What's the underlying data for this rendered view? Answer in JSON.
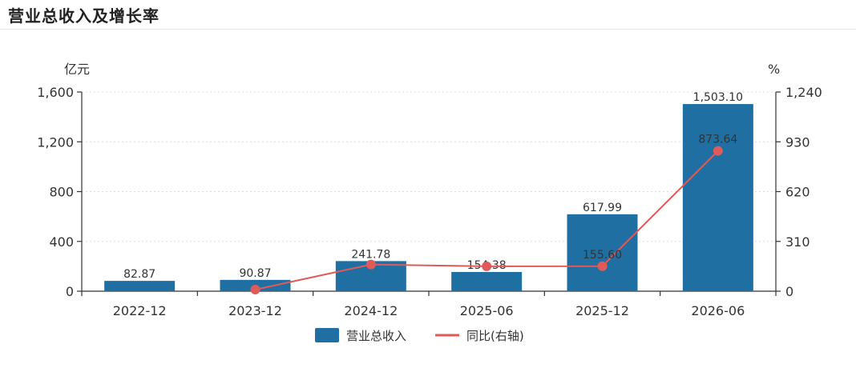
{
  "header": {
    "title": "营业总收入及增长率"
  },
  "chart_data": {
    "type": "bar",
    "categories": [
      "2022-12",
      "2023-12",
      "2024-12",
      "2025-06",
      "2025-12",
      "2026-06"
    ],
    "series": [
      {
        "name": "营业总收入",
        "type": "bar",
        "axis": "left",
        "values": [
          82.87,
          90.87,
          241.78,
          154.38,
          617.99,
          1503.1
        ],
        "labels": [
          "82.87",
          "90.87",
          "241.78",
          "154.38",
          "617.99",
          "1,503.10"
        ]
      },
      {
        "name": "同比(右轴)",
        "type": "line",
        "axis": "right",
        "values": [
          null,
          10,
          166,
          155,
          155.6,
          873.64
        ],
        "labels": [
          "",
          "",
          "",
          "",
          "155.60",
          "873.64"
        ]
      }
    ],
    "y_left": {
      "unit": "亿元",
      "range": [
        0,
        1600
      ],
      "ticks": [
        0,
        400,
        800,
        1200,
        1600
      ],
      "tick_labels": [
        "0",
        "400",
        "800",
        "1,200",
        "1,600"
      ]
    },
    "y_right": {
      "unit": "%",
      "range": [
        0,
        1240
      ],
      "ticks": [
        0,
        310,
        620,
        930,
        1240
      ],
      "tick_labels": [
        "0",
        "310",
        "620",
        "930",
        "1,240"
      ]
    },
    "grid": "dotted-horizontal",
    "legend_position": "bottom-center",
    "colors": {
      "bar": "#1f6fa3",
      "line": "#e05a5a",
      "axis": "#333333",
      "grid": "#d9dde2"
    }
  }
}
